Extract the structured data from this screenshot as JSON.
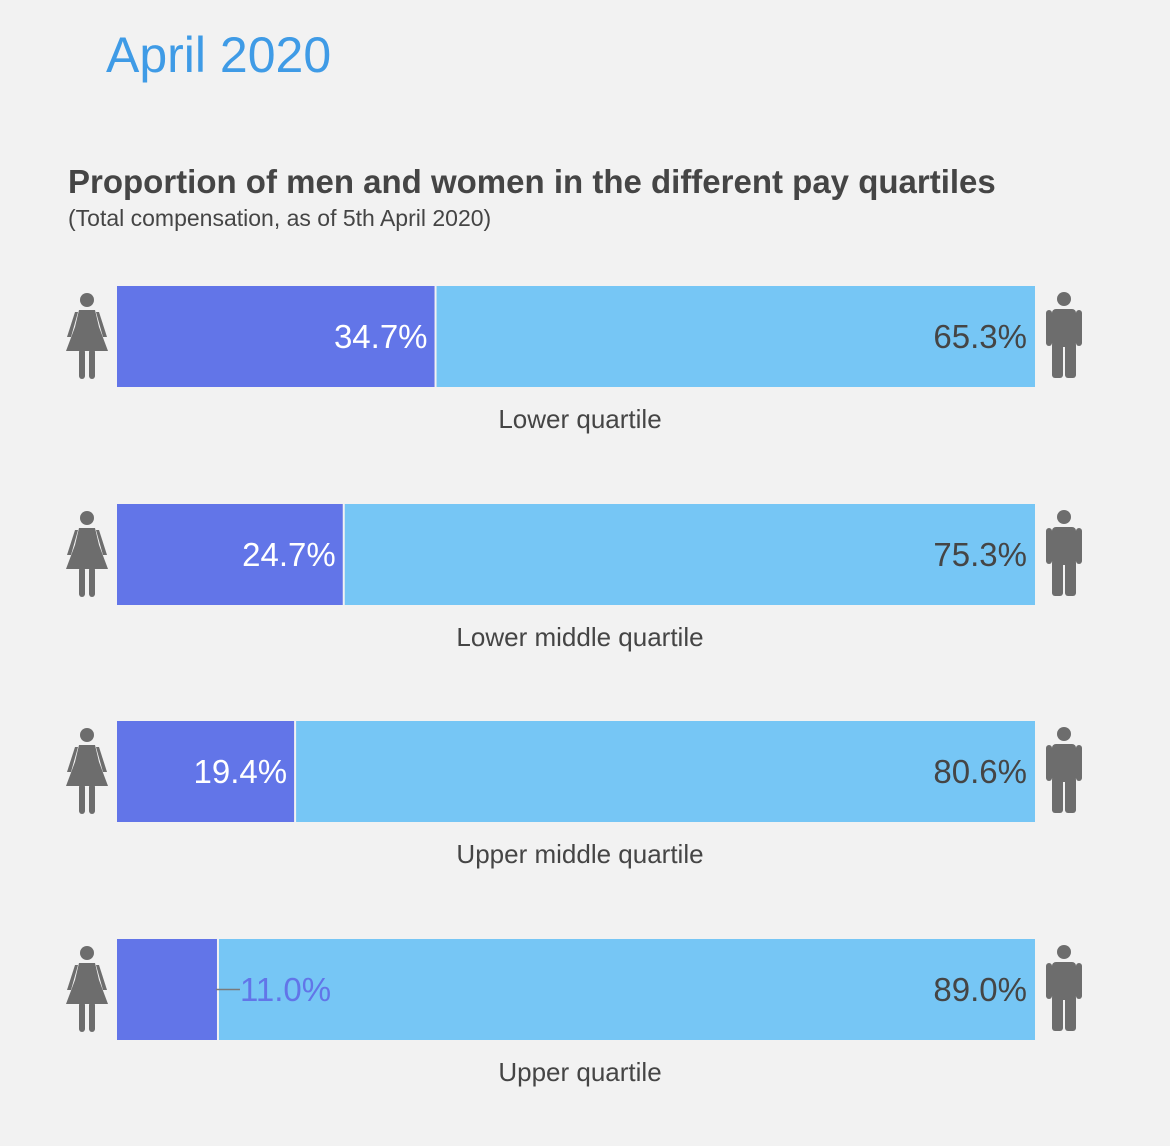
{
  "page": {
    "heading": "April 2020"
  },
  "chart_data": {
    "type": "bar",
    "orientation": "horizontal",
    "stacked": true,
    "normalized": true,
    "title": "Proportion of men and women in the different pay quartiles",
    "subtitle": "(Total compensation, as of 5th April 2020)",
    "categories": [
      "Lower quartile",
      "Lower middle quartile",
      "Upper middle quartile",
      "Upper quartile"
    ],
    "series": [
      {
        "name": "",
        "icon": "woman-icon",
        "color": "#6275e8",
        "values": [
          34.7,
          24.7,
          19.4,
          11.0
        ],
        "labels": [
          "34.7%",
          "24.7%",
          "19.4%",
          "11.0%"
        ]
      },
      {
        "name": "",
        "icon": "man-icon",
        "color": "#76c6f5",
        "values": [
          65.3,
          75.3,
          80.6,
          89.0
        ],
        "labels": [
          "65.3%",
          "75.3%",
          "80.6%",
          "89.0%"
        ]
      }
    ],
    "xlim": [
      0,
      100
    ],
    "grid": false,
    "legend": "none",
    "label_color_inside_women": "#ffffff",
    "label_color_outside_women": "#6275e8",
    "label_color_men": "#454545",
    "icon_color": "#6d6d6d",
    "category_label_color": "#454545"
  }
}
